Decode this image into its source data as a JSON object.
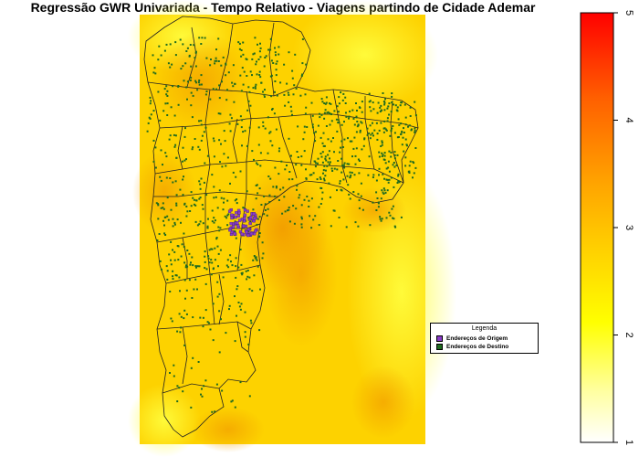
{
  "title": "Regressão GWR Univariada - Tempo Relativo - Viagens partindo de Cidade Ademar",
  "colors": {
    "origin": "#8a3cc8",
    "destination": "#1f6b1f",
    "raster_low": "#ffff55",
    "raster_high": "#f3a500",
    "boundary": "#222222"
  },
  "legend": {
    "title": "Legenda",
    "items": [
      {
        "label": "Endereços de Origem",
        "color": "#8a3cc8"
      },
      {
        "label": "Endereços de Destino",
        "color": "#1f6b1f"
      }
    ]
  },
  "colorbar": {
    "min": 1,
    "max": 5,
    "ticks": [
      "1",
      "2",
      "3",
      "4",
      "5"
    ],
    "colors": [
      "#ffffff",
      "#ffff99",
      "#ffee00",
      "#ffcc00",
      "#ffa000",
      "#ff6000",
      "#ff0000"
    ]
  }
}
